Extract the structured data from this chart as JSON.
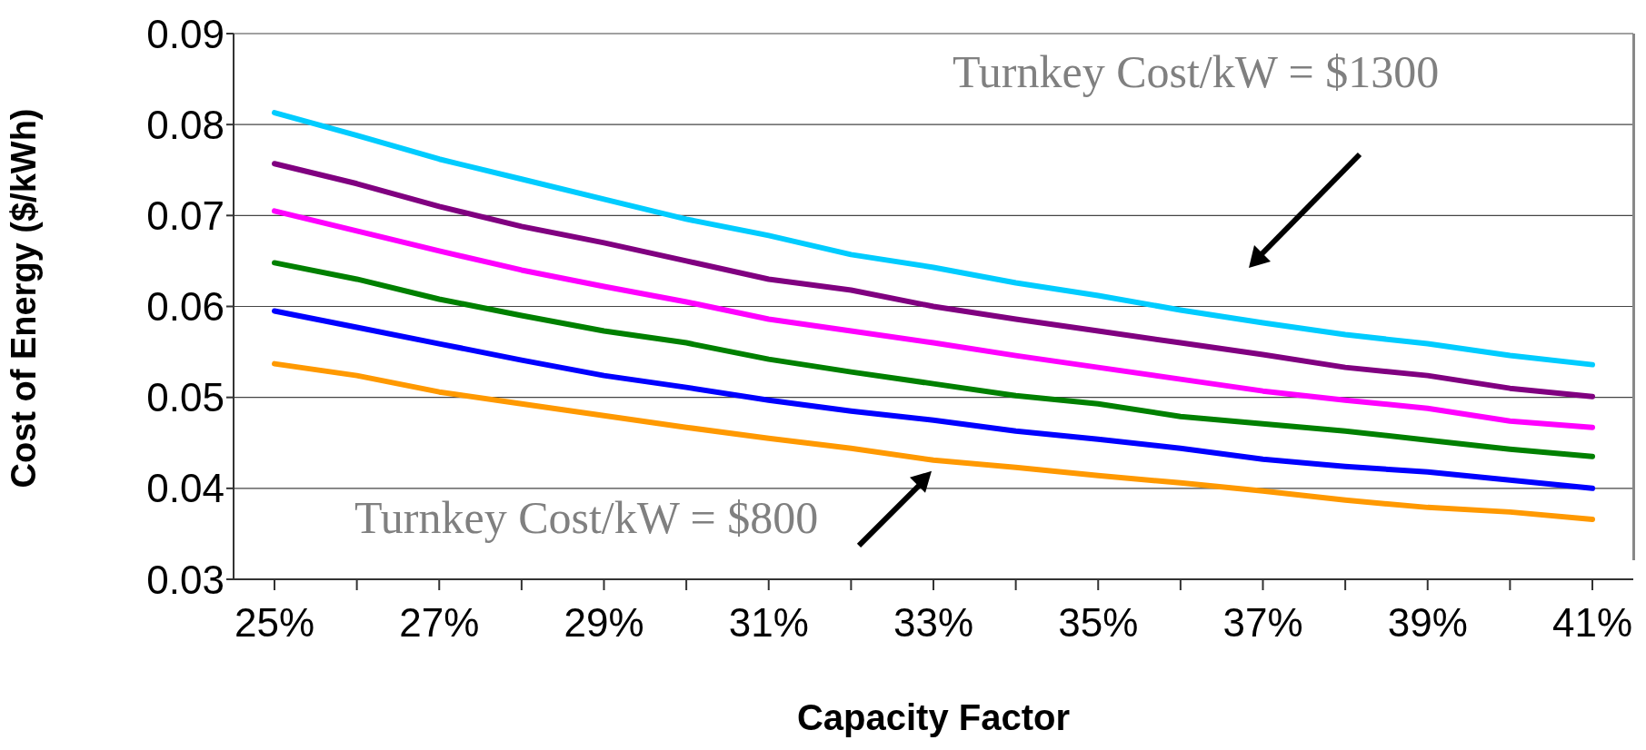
{
  "chart_data": {
    "type": "line",
    "xlabel": "Capacity Factor",
    "ylabel": "Cost of Energy ($/kWh)",
    "categories": [
      "25%",
      null,
      "27%",
      null,
      "29%",
      null,
      "31%",
      null,
      "33%",
      null,
      "35%",
      null,
      "37%",
      null,
      "39%",
      null,
      "41%"
    ],
    "series": [
      {
        "color": "#00ccff",
        "values": [
          0.0813,
          0.0788,
          0.0762,
          0.074,
          0.0718,
          0.0696,
          0.0678,
          0.0657,
          0.0643,
          0.0626,
          0.0612,
          0.0596,
          0.0582,
          0.0569,
          0.0559,
          0.0546,
          0.0536
        ]
      },
      {
        "color": "#800080",
        "values": [
          0.0757,
          0.0735,
          0.071,
          0.0688,
          0.067,
          0.065,
          0.063,
          0.0618,
          0.06,
          0.0586,
          0.0573,
          0.056,
          0.0547,
          0.0533,
          0.0524,
          0.051,
          0.0501
        ]
      },
      {
        "color": "#ff00ff",
        "values": [
          0.0705,
          0.0683,
          0.0661,
          0.064,
          0.0622,
          0.0605,
          0.0586,
          0.0573,
          0.056,
          0.0546,
          0.0533,
          0.052,
          0.0507,
          0.0497,
          0.0488,
          0.0474,
          0.0467
        ]
      },
      {
        "color": "#008000",
        "values": [
          0.0648,
          0.063,
          0.0608,
          0.059,
          0.0573,
          0.056,
          0.0542,
          0.0528,
          0.0515,
          0.0502,
          0.0493,
          0.0479,
          0.0471,
          0.0463,
          0.0453,
          0.0443,
          0.0435
        ]
      },
      {
        "color": "#0000ff",
        "values": [
          0.0595,
          0.0577,
          0.0559,
          0.0541,
          0.0524,
          0.0511,
          0.0497,
          0.0485,
          0.0475,
          0.0463,
          0.0454,
          0.0444,
          0.0432,
          0.0424,
          0.0418,
          0.0409,
          0.04
        ]
      },
      {
        "color": "#ff9900",
        "values": [
          0.0537,
          0.0524,
          0.0506,
          0.0493,
          0.048,
          0.0467,
          0.0455,
          0.0444,
          0.0431,
          0.0423,
          0.0414,
          0.0406,
          0.0397,
          0.0387,
          0.0379,
          0.0374,
          0.0366
        ]
      }
    ],
    "ylim": [
      0.03,
      0.09
    ],
    "yticks": [
      0.03,
      0.04,
      0.05,
      0.06,
      0.07,
      0.08,
      0.09
    ],
    "grid": "y",
    "legend": false,
    "marker": "none",
    "line_style": "solid",
    "annotations": [
      "Turnkey Cost/kW = $1300",
      {
        "text": "Turnkey Cost/kW = $800",
        "x": "33%",
        "y": 0.0431
      }
    ]
  }
}
